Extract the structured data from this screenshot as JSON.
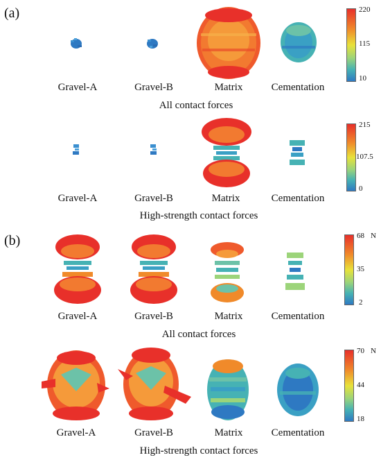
{
  "panels": [
    {
      "label": "(a)"
    },
    {
      "label": "(b)"
    }
  ],
  "rows": [
    {
      "title": "All contact forces",
      "items": [
        {
          "label": "Gravel-A"
        },
        {
          "label": "Gravel-B"
        },
        {
          "label": "Matrix"
        },
        {
          "label": "Cementation"
        }
      ],
      "colorbar": {
        "max": "220",
        "mid": "115",
        "min": "10",
        "unit": ""
      }
    },
    {
      "title": "High-strength contact forces",
      "items": [
        {
          "label": "Gravel-A"
        },
        {
          "label": "Gravel-B"
        },
        {
          "label": "Matrix"
        },
        {
          "label": "Cementation"
        }
      ],
      "colorbar": {
        "max": "215",
        "mid": "107.5",
        "min": "0",
        "unit": ""
      }
    },
    {
      "title": "All contact forces",
      "items": [
        {
          "label": "Gravel-A"
        },
        {
          "label": "Gravel-B"
        },
        {
          "label": "Matrix"
        },
        {
          "label": "Cementation"
        }
      ],
      "colorbar": {
        "max": "68",
        "mid": "35",
        "min": "2",
        "unit": "N"
      }
    },
    {
      "title": "High-strength contact forces",
      "items": [
        {
          "label": "Gravel-A"
        },
        {
          "label": "Gravel-B"
        },
        {
          "label": "Matrix"
        },
        {
          "label": "Cementation"
        }
      ],
      "colorbar": {
        "max": "70",
        "mid": "44",
        "min": "18",
        "unit": "N"
      }
    }
  ],
  "colors": {
    "high": "#e8302a",
    "upper": "#f08a2a",
    "mid": "#e8e23a",
    "low": "#46b2b4",
    "lowest": "#2e79c2"
  }
}
